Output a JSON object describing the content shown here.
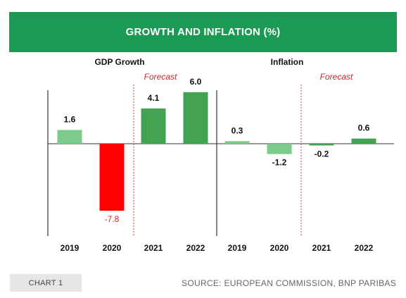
{
  "title": "GROWTH AND INFLATION (%)",
  "footer": {
    "badge": "CHART 1",
    "source": "SOURCE: EUROPEAN COMMISSION, BNP PARIBAS"
  },
  "colors": {
    "header": "#1a9a52",
    "actual_green": "#7dcb8a",
    "forecast_green": "#43a352",
    "negative_red": "#ff0000",
    "forecast_divider": "#d0423b"
  },
  "chart_data": [
    {
      "type": "bar",
      "title": "GDP Growth",
      "forecast_label": "Forecast",
      "categories": [
        "2019",
        "2020",
        "2021",
        "2022"
      ],
      "values": [
        1.6,
        -7.8,
        4.1,
        6.0
      ],
      "value_labels": [
        "1.6",
        "-7.8",
        "4.1",
        "6.0"
      ],
      "forecast_from": "2021",
      "ylim": [
        -8.5,
        6.5
      ]
    },
    {
      "type": "bar",
      "title": "Inflation",
      "forecast_label": "Forecast",
      "categories": [
        "2019",
        "2020",
        "2021",
        "2022"
      ],
      "values": [
        0.3,
        -1.2,
        -0.2,
        0.6
      ],
      "value_labels": [
        "0.3",
        "-1.2",
        "-0.2",
        "0.6"
      ],
      "forecast_from": "2021",
      "ylim": [
        -8.5,
        6.5
      ]
    }
  ]
}
